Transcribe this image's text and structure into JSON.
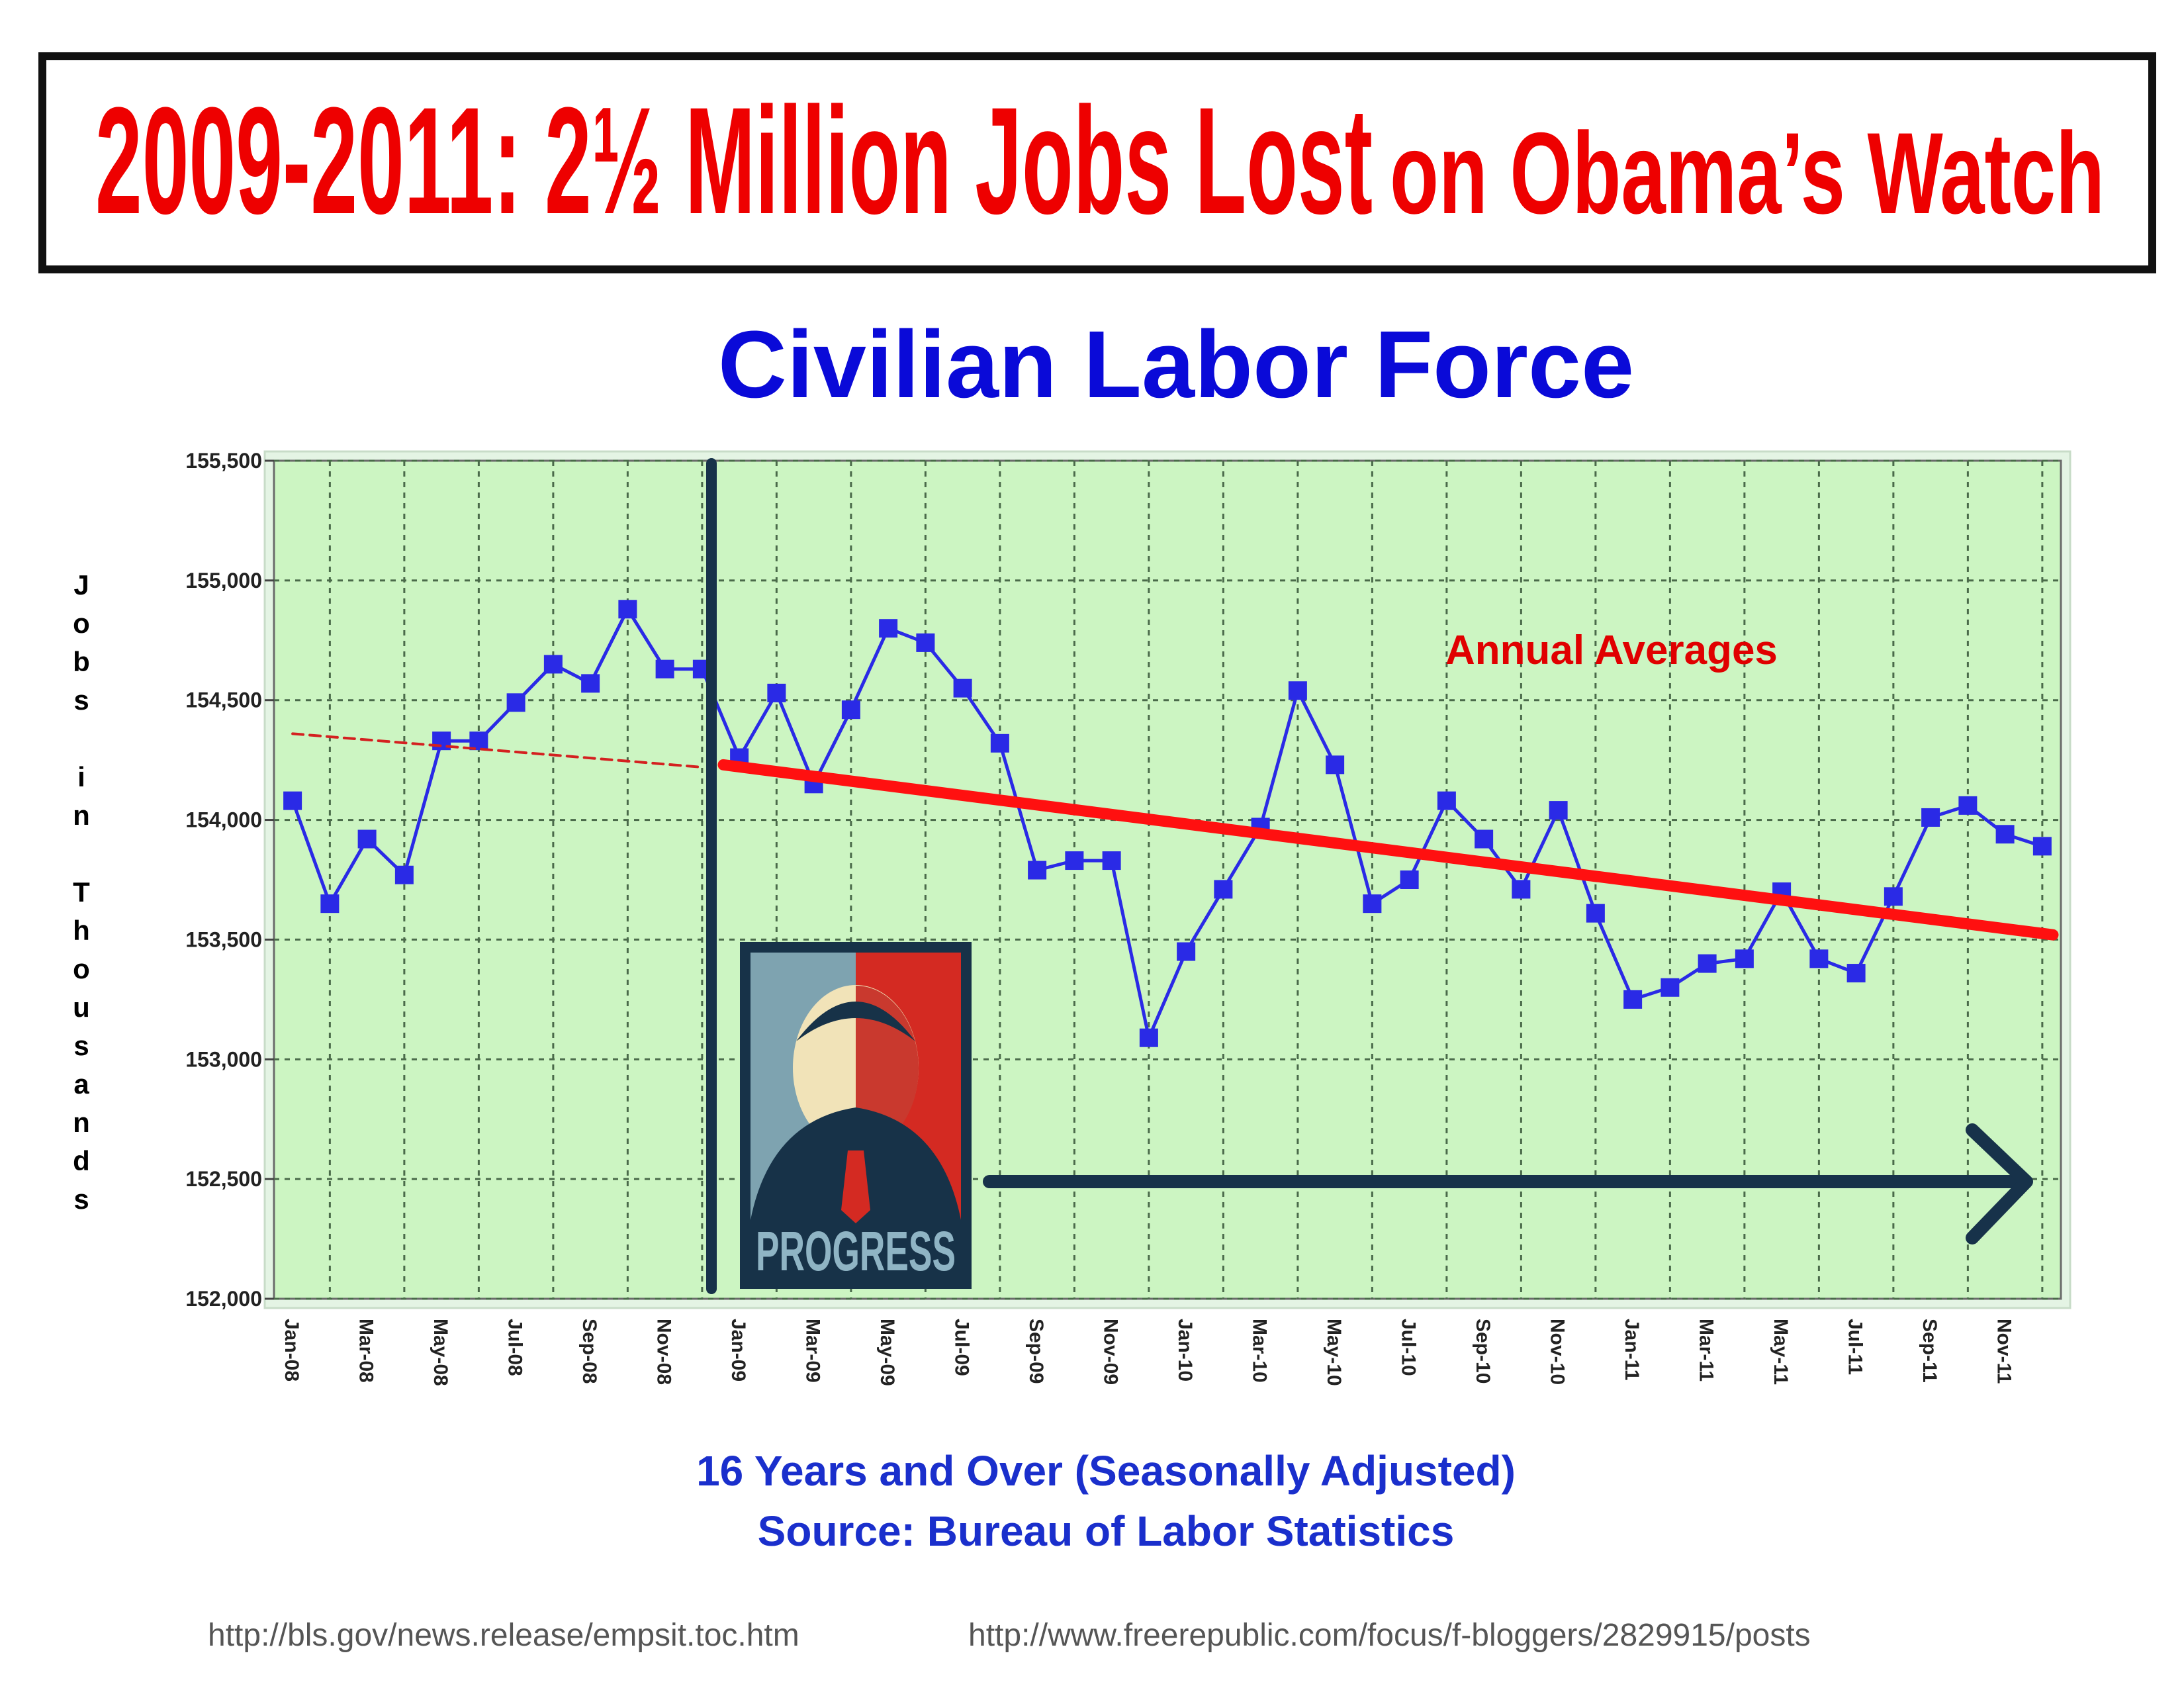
{
  "chart_data": {
    "type": "line",
    "headline": [
      "2009-2011: 2½ Million Jobs Lost",
      "on Obama’s Watch"
    ],
    "title": "Civilian Labor Force",
    "y_label": "Jobs in Thousands",
    "subtitle": [
      "16 Years and Over (Seasonally Adjusted)",
      "Source: Bureau of Labor Statistics"
    ],
    "source_urls": [
      "http://bls.gov/news.release/empsit.toc.htm",
      "http://www.freerepublic.com/focus/f-bloggers/2829915/posts"
    ],
    "annotation": "Annual Averages",
    "image_caption": "PROGRESS",
    "categories": [
      "Jan-08",
      null,
      "Mar-08",
      null,
      "May-08",
      null,
      "Jul-08",
      null,
      "Sep-08",
      null,
      "Nov-08",
      null,
      "Jan-09",
      null,
      "Mar-09",
      null,
      "May-09",
      null,
      "Jul-09",
      null,
      "Sep-09",
      null,
      "Nov-09",
      null,
      "Jan-10",
      null,
      "Mar-10",
      null,
      "May-10",
      null,
      "Jul-10",
      null,
      "Sep-10",
      null,
      "Nov-10",
      null,
      "Jan-11",
      null,
      "Mar-11",
      null,
      "May-11",
      null,
      "Jul-11",
      null,
      "Sep-11",
      null,
      "Nov-11",
      null
    ],
    "series": [
      {
        "color": "#2a2ae6",
        "values": [
          154080,
          153650,
          153920,
          153770,
          154330,
          154330,
          154490,
          154650,
          154570,
          154880,
          154630,
          154630,
          154260,
          154530,
          154150,
          154460,
          154800,
          154740,
          154550,
          154320,
          153790,
          153830,
          153830,
          153090,
          153450,
          153710,
          153970,
          154540,
          154230,
          153650,
          153750,
          154080,
          153920,
          153710,
          154040,
          153610,
          153250,
          153300,
          153400,
          153420,
          153700,
          153420,
          153360,
          153680,
          154010,
          154060,
          153940,
          153890
        ]
      }
    ],
    "annual_averages": [
      {
        "color": "#d42020",
        "style": "dashed",
        "values": [
          154360,
          154220
        ]
      },
      {
        "color": "#ff1010",
        "style": "solid",
        "values": [
          154230,
          153520
        ]
      }
    ],
    "ylim": [
      152000,
      155500
    ],
    "yticks": [
      {
        "value": 152000,
        "label": "152,000"
      },
      {
        "value": 152500,
        "label": "152,500"
      },
      {
        "value": 153000,
        "label": "153,000"
      },
      {
        "value": 153500,
        "label": "153,500"
      },
      {
        "value": 154000,
        "label": "154,000"
      },
      {
        "value": 154500,
        "label": "154,500"
      },
      {
        "value": 155000,
        "label": "155,000"
      },
      {
        "value": 155500,
        "label": "155,500"
      }
    ],
    "grid": true
  }
}
